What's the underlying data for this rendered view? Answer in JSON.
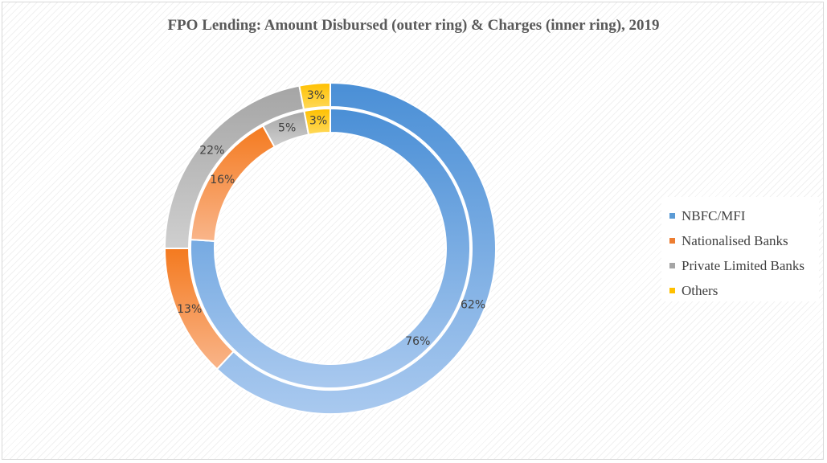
{
  "chart_data": {
    "type": "pie",
    "variant": "donut-two-ring",
    "title": "FPO Lending: Amount Disbursed (outer ring) & Charges (inner ring), 2019",
    "categories": [
      "NBFC/MFI",
      "Nationalised Banks",
      "Private Limited Banks",
      "Others"
    ],
    "series": [
      {
        "ring": "outer",
        "values": [
          62,
          13,
          22,
          3
        ],
        "labels": [
          "62%",
          "13%",
          "22%",
          "3%"
        ]
      },
      {
        "ring": "inner",
        "values": [
          76,
          16,
          5,
          3
        ],
        "labels": [
          "76%",
          "16%",
          "5%",
          "3%"
        ]
      }
    ],
    "colors": [
      "#5b9bd5",
      "#ed7d31",
      "#a5a5a5",
      "#ffc000"
    ],
    "legend_position": "right"
  }
}
